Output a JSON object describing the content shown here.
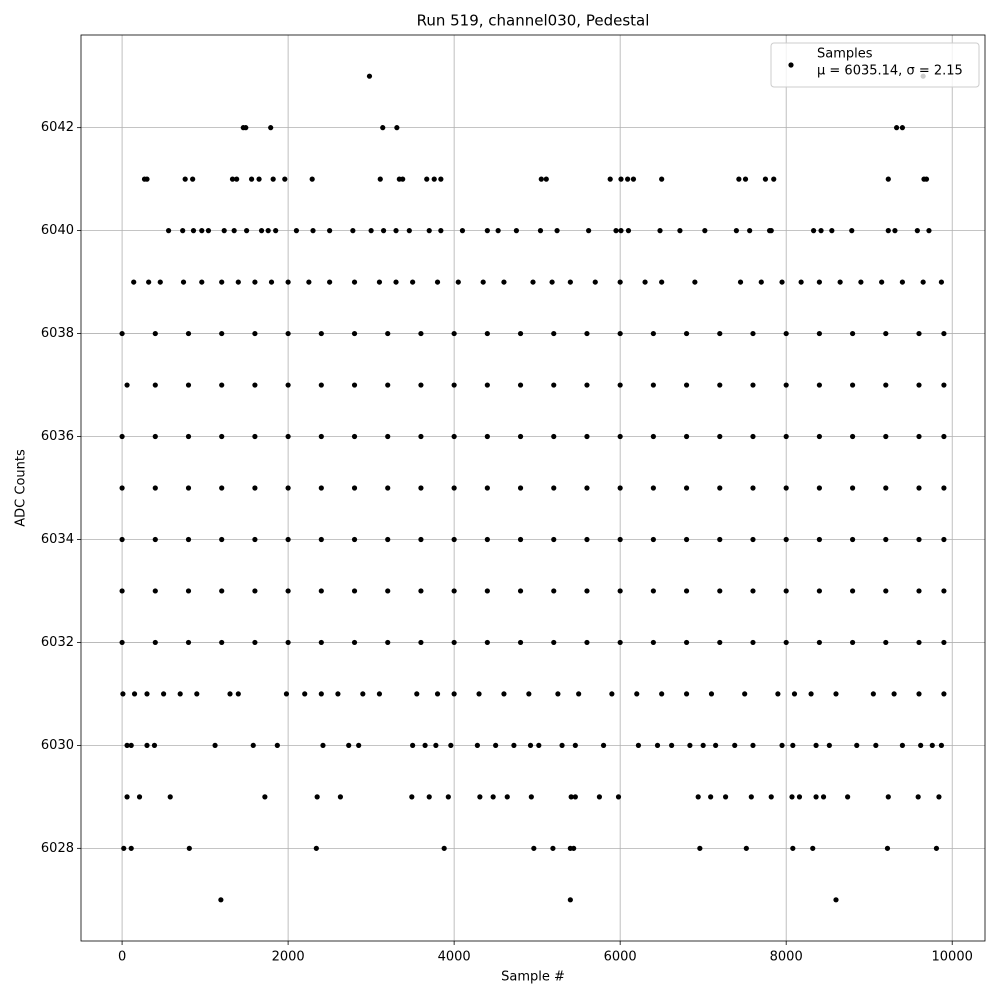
{
  "chart_data": {
    "type": "scatter",
    "title": "Run 519, channel030, Pedestal",
    "x_label": "Sample #",
    "y_label": "ADC Counts",
    "xlim": [
      -495,
      10395
    ],
    "xticks": [
      0,
      2000,
      4000,
      6000,
      8000,
      10000
    ],
    "ylim": [
      6026.2,
      6043.8
    ],
    "yticks": [
      6028,
      6030,
      6032,
      6034,
      6036,
      6038,
      6040,
      6042
    ],
    "grid": true,
    "legend": "upper right",
    "series": [
      {
        "name": "Samples",
        "stats_label": "μ = 6035.14, σ = 2.15",
        "color": "#000000",
        "x": [
          2980,
          9650,
          1460,
          1490,
          1790,
          3140,
          3310,
          9330,
          9400,
          270,
          300,
          760,
          850,
          1330,
          1380,
          1560,
          1650,
          1820,
          1960,
          2290,
          3110,
          3340,
          3380,
          3670,
          3760,
          3840,
          5050,
          5110,
          5880,
          6010,
          6090,
          6160,
          6500,
          7430,
          7510,
          7750,
          7850,
          9230,
          9660,
          9690,
          560,
          730,
          860,
          960,
          1040,
          1230,
          1350,
          1500,
          1680,
          1760,
          1850,
          2100,
          2300,
          2500,
          2780,
          3000,
          3150,
          3300,
          3460,
          3700,
          3840,
          4100,
          4400,
          4530,
          4750,
          5040,
          5240,
          5620,
          5950,
          6010,
          6100,
          6480,
          6720,
          7020,
          7400,
          7560,
          7800,
          7820,
          8330,
          8420,
          8550,
          8790,
          9230,
          9310,
          9580,
          9720,
          140,
          320,
          460,
          740,
          960,
          1200,
          1400,
          1600,
          1800,
          2000,
          2250,
          2500,
          2800,
          3100,
          3300,
          3500,
          3800,
          4050,
          4350,
          4600,
          4950,
          5180,
          5400,
          5700,
          6000,
          6300,
          6500,
          6900,
          7450,
          7700,
          7950,
          8180,
          8400,
          8650,
          8900,
          9150,
          9400,
          9650,
          9870,
          0,
          400,
          800,
          1200,
          1600,
          2000,
          2400,
          2800,
          3200,
          3600,
          4000,
          4400,
          4800,
          5200,
          5600,
          6000,
          6400,
          6800,
          7200,
          7600,
          8000,
          8400,
          8800,
          9200,
          9600,
          9900,
          60,
          400,
          800,
          1200,
          1600,
          2000,
          2400,
          2800,
          3200,
          3600,
          4000,
          4400,
          4800,
          5200,
          5600,
          6000,
          6400,
          6800,
          7200,
          7600,
          8000,
          8400,
          8800,
          9200,
          9600,
          9900,
          0,
          400,
          800,
          1200,
          1600,
          2000,
          2400,
          2800,
          3200,
          3600,
          4000,
          4400,
          4800,
          5200,
          5600,
          6000,
          6400,
          6800,
          7200,
          7600,
          8000,
          8400,
          8800,
          9200,
          9600,
          9900,
          0,
          400,
          800,
          1200,
          1600,
          2000,
          2400,
          2800,
          3200,
          3600,
          4000,
          4400,
          4800,
          5200,
          5600,
          6000,
          6400,
          6800,
          7200,
          7600,
          8000,
          8400,
          8800,
          9200,
          9600,
          9900,
          0,
          400,
          800,
          1200,
          1600,
          2000,
          2400,
          2800,
          3200,
          3600,
          4000,
          4400,
          4800,
          5200,
          5600,
          6000,
          6400,
          6800,
          7200,
          7600,
          8000,
          8400,
          8800,
          9200,
          9600,
          9900,
          0,
          400,
          800,
          1200,
          1600,
          2000,
          2400,
          2800,
          3200,
          3600,
          4000,
          4400,
          4800,
          5200,
          5600,
          6000,
          6400,
          6800,
          7200,
          7600,
          8000,
          8400,
          8800,
          9200,
          9600,
          9900,
          0,
          400,
          800,
          1200,
          1600,
          2000,
          2400,
          2800,
          3200,
          3600,
          4000,
          4400,
          4800,
          5200,
          5600,
          6000,
          6400,
          6800,
          7200,
          7600,
          8000,
          8400,
          8800,
          9200,
          9600,
          9900,
          10,
          150,
          300,
          500,
          700,
          900,
          1300,
          1400,
          1980,
          2200,
          2400,
          2600,
          2900,
          3100,
          3550,
          3800,
          4000,
          4300,
          4600,
          4900,
          5250,
          5500,
          5900,
          6200,
          6500,
          6800,
          7100,
          7500,
          7900,
          8100,
          8300,
          8600,
          9050,
          9300,
          9600,
          9900,
          60,
          110,
          300,
          390,
          1120,
          1580,
          1870,
          2420,
          2730,
          2850,
          3500,
          3650,
          3780,
          3960,
          4280,
          4500,
          4720,
          4920,
          5020,
          5300,
          5460,
          5800,
          6220,
          6450,
          6620,
          6840,
          7000,
          7150,
          7380,
          7600,
          7950,
          8080,
          8360,
          8520,
          8850,
          9080,
          9400,
          9620,
          9760,
          9870,
          60,
          210,
          580,
          1720,
          2350,
          2630,
          3490,
          3700,
          3930,
          4310,
          4470,
          4640,
          4930,
          5410,
          5460,
          5750,
          5980,
          6940,
          7090,
          7270,
          7580,
          7820,
          8070,
          8160,
          8360,
          8450,
          8740,
          9230,
          9590,
          9840,
          20,
          110,
          810,
          2340,
          3880,
          4960,
          5190,
          5400,
          5440,
          6960,
          7520,
          8080,
          8320,
          9220,
          9810,
          1190,
          5400,
          8600
        ],
        "values": [
          6043,
          6043,
          6042,
          6042,
          6042,
          6042,
          6042,
          6042,
          6042,
          6041,
          6041,
          6041,
          6041,
          6041,
          6041,
          6041,
          6041,
          6041,
          6041,
          6041,
          6041,
          6041,
          6041,
          6041,
          6041,
          6041,
          6041,
          6041,
          6041,
          6041,
          6041,
          6041,
          6041,
          6041,
          6041,
          6041,
          6041,
          6041,
          6041,
          6041,
          6040,
          6040,
          6040,
          6040,
          6040,
          6040,
          6040,
          6040,
          6040,
          6040,
          6040,
          6040,
          6040,
          6040,
          6040,
          6040,
          6040,
          6040,
          6040,
          6040,
          6040,
          6040,
          6040,
          6040,
          6040,
          6040,
          6040,
          6040,
          6040,
          6040,
          6040,
          6040,
          6040,
          6040,
          6040,
          6040,
          6040,
          6040,
          6040,
          6040,
          6040,
          6040,
          6040,
          6040,
          6040,
          6040,
          6039,
          6039,
          6039,
          6039,
          6039,
          6039,
          6039,
          6039,
          6039,
          6039,
          6039,
          6039,
          6039,
          6039,
          6039,
          6039,
          6039,
          6039,
          6039,
          6039,
          6039,
          6039,
          6039,
          6039,
          6039,
          6039,
          6039,
          6039,
          6039,
          6039,
          6039,
          6039,
          6039,
          6039,
          6039,
          6039,
          6039,
          6039,
          6039,
          6038,
          6038,
          6038,
          6038,
          6038,
          6038,
          6038,
          6038,
          6038,
          6038,
          6038,
          6038,
          6038,
          6038,
          6038,
          6038,
          6038,
          6038,
          6038,
          6038,
          6038,
          6038,
          6038,
          6038,
          6038,
          6038,
          6037,
          6037,
          6037,
          6037,
          6037,
          6037,
          6037,
          6037,
          6037,
          6037,
          6037,
          6037,
          6037,
          6037,
          6037,
          6037,
          6037,
          6037,
          6037,
          6037,
          6037,
          6037,
          6037,
          6037,
          6037,
          6037,
          6036,
          6036,
          6036,
          6036,
          6036,
          6036,
          6036,
          6036,
          6036,
          6036,
          6036,
          6036,
          6036,
          6036,
          6036,
          6036,
          6036,
          6036,
          6036,
          6036,
          6036,
          6036,
          6036,
          6036,
          6036,
          6036,
          6035,
          6035,
          6035,
          6035,
          6035,
          6035,
          6035,
          6035,
          6035,
          6035,
          6035,
          6035,
          6035,
          6035,
          6035,
          6035,
          6035,
          6035,
          6035,
          6035,
          6035,
          6035,
          6035,
          6035,
          6035,
          6035,
          6034,
          6034,
          6034,
          6034,
          6034,
          6034,
          6034,
          6034,
          6034,
          6034,
          6034,
          6034,
          6034,
          6034,
          6034,
          6034,
          6034,
          6034,
          6034,
          6034,
          6034,
          6034,
          6034,
          6034,
          6034,
          6034,
          6033,
          6033,
          6033,
          6033,
          6033,
          6033,
          6033,
          6033,
          6033,
          6033,
          6033,
          6033,
          6033,
          6033,
          6033,
          6033,
          6033,
          6033,
          6033,
          6033,
          6033,
          6033,
          6033,
          6033,
          6033,
          6033,
          6032,
          6032,
          6032,
          6032,
          6032,
          6032,
          6032,
          6032,
          6032,
          6032,
          6032,
          6032,
          6032,
          6032,
          6032,
          6032,
          6032,
          6032,
          6032,
          6032,
          6032,
          6032,
          6032,
          6032,
          6032,
          6032,
          6031,
          6031,
          6031,
          6031,
          6031,
          6031,
          6031,
          6031,
          6031,
          6031,
          6031,
          6031,
          6031,
          6031,
          6031,
          6031,
          6031,
          6031,
          6031,
          6031,
          6031,
          6031,
          6031,
          6031,
          6031,
          6031,
          6031,
          6031,
          6031,
          6031,
          6031,
          6031,
          6031,
          6031,
          6031,
          6031,
          6030,
          6030,
          6030,
          6030,
          6030,
          6030,
          6030,
          6030,
          6030,
          6030,
          6030,
          6030,
          6030,
          6030,
          6030,
          6030,
          6030,
          6030,
          6030,
          6030,
          6030,
          6030,
          6030,
          6030,
          6030,
          6030,
          6030,
          6030,
          6030,
          6030,
          6030,
          6030,
          6030,
          6030,
          6030,
          6030,
          6030,
          6030,
          6030,
          6030,
          6029,
          6029,
          6029,
          6029,
          6029,
          6029,
          6029,
          6029,
          6029,
          6029,
          6029,
          6029,
          6029,
          6029,
          6029,
          6029,
          6029,
          6029,
          6029,
          6029,
          6029,
          6029,
          6029,
          6029,
          6029,
          6029,
          6029,
          6029,
          6029,
          6029,
          6028,
          6028,
          6028,
          6028,
          6028,
          6028,
          6028,
          6028,
          6028,
          6028,
          6028,
          6028,
          6028,
          6028,
          6028,
          6027,
          6027,
          6027
        ]
      }
    ]
  }
}
